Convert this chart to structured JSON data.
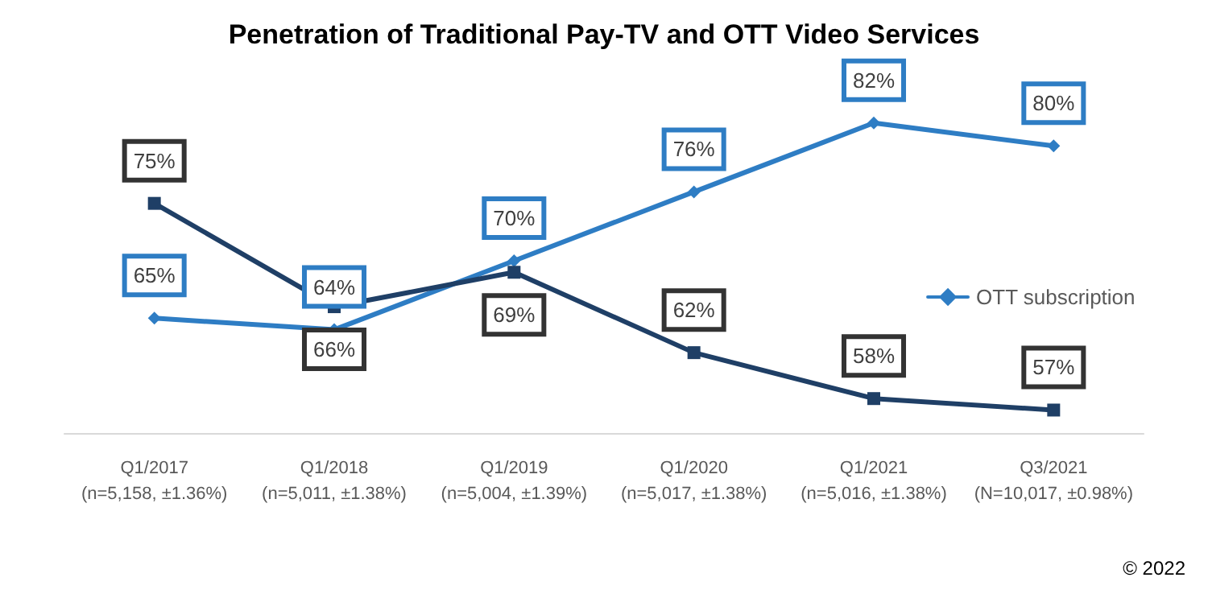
{
  "chart_data": {
    "type": "line",
    "title": "Penetration of Traditional Pay-TV and OTT Video Services",
    "categories": [
      "Q1/2017\n(n=5,158, ±1.36%)",
      "Q1/2018\n(n=5,011, ±1.38%)",
      "Q1/2019\n(n=5,004, ±1.39%)",
      "Q1/2020\n(n=5,017, ±1.38%)",
      "Q1/2021\n(n=5,016, ±1.38%)",
      "Q3/2021\n(N=10,017, ±0.98%)"
    ],
    "series": [
      {
        "name": "OTT subscription",
        "color": "#2e7dc4",
        "marker": "diamond",
        "values": [
          65,
          64,
          70,
          76,
          82,
          80
        ],
        "value_labels": [
          "65%",
          "64%",
          "70%",
          "76%",
          "82%",
          "80%"
        ]
      },
      {
        "color": "#1f3f66",
        "marker": "square",
        "values": [
          75,
          66,
          69,
          62,
          58,
          57
        ],
        "value_labels": [
          "75%",
          "66%",
          "69%",
          "62%",
          "58%",
          "57%"
        ]
      }
    ],
    "tick_labels": "x",
    "grid": false,
    "legend": "right",
    "annotations": [
      "© 2022"
    ]
  }
}
